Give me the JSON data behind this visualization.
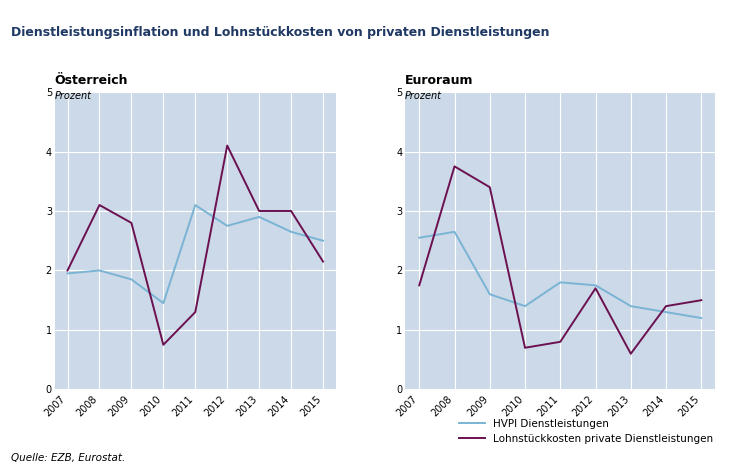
{
  "title": "Dienstleistungsinflation und Lohnstückkosten von privaten Dienstleistungen",
  "title_color": "#1f3864",
  "subtitle_left": "Österreich",
  "subtitle_right": "Euroraum",
  "ylabel": "Prozent",
  "years": [
    2007,
    2008,
    2009,
    2010,
    2011,
    2012,
    2013,
    2014,
    2015
  ],
  "at_hvpi": [
    1.95,
    2.0,
    1.85,
    1.45,
    3.1,
    2.75,
    2.9,
    2.65,
    2.5
  ],
  "at_lohnstk": [
    2.0,
    3.1,
    2.8,
    0.75,
    1.3,
    4.1,
    3.0,
    3.0,
    2.15
  ],
  "eu_hvpi": [
    2.55,
    2.65,
    1.6,
    1.4,
    1.8,
    1.75,
    1.4,
    1.3,
    1.2
  ],
  "eu_lohnstk": [
    1.75,
    3.75,
    3.4,
    0.7,
    0.8,
    1.7,
    0.6,
    1.4,
    1.5
  ],
  "ylim": [
    0,
    5
  ],
  "yticks": [
    0,
    1,
    2,
    3,
    4,
    5
  ],
  "line_color_hvpi": "#7ab4d4",
  "line_color_lohnstk": "#6b1050",
  "bg_color": "#ccd9e8",
  "legend_hvpi": "HVPI Dienstleistungen",
  "legend_lohnstk": "Lohnstückkosten private Dienstleistungen",
  "source": "Quelle: EZB, Eurostat.",
  "top_bar_color": "#2e4d8e",
  "fig_bg": "#f0f0f0"
}
